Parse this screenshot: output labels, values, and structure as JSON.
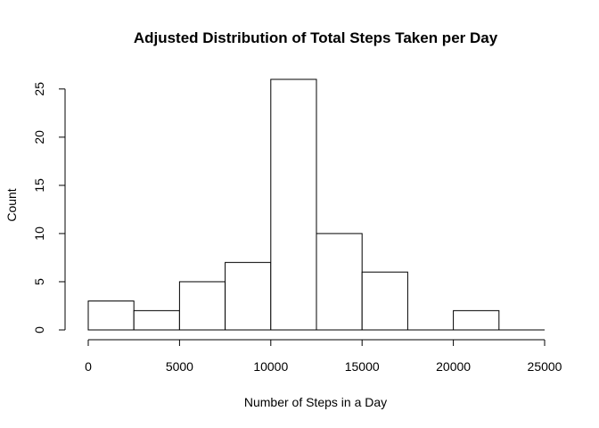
{
  "chart_data": {
    "type": "bar",
    "title": "Adjusted Distribution of Total Steps Taken per Day",
    "xlabel": "Number of Steps in a Day",
    "ylabel": "Count",
    "bins": [
      {
        "start": 0,
        "end": 2500,
        "count": 3
      },
      {
        "start": 2500,
        "end": 5000,
        "count": 2
      },
      {
        "start": 5000,
        "end": 7500,
        "count": 5
      },
      {
        "start": 7500,
        "end": 10000,
        "count": 7
      },
      {
        "start": 10000,
        "end": 12500,
        "count": 26
      },
      {
        "start": 12500,
        "end": 15000,
        "count": 10
      },
      {
        "start": 15000,
        "end": 17500,
        "count": 6
      },
      {
        "start": 17500,
        "end": 20000,
        "count": 0
      },
      {
        "start": 20000,
        "end": 22500,
        "count": 2
      },
      {
        "start": 22500,
        "end": 25000,
        "count": 0
      }
    ],
    "xlim": [
      0,
      25000
    ],
    "ylim": [
      0,
      26
    ],
    "x_ticks": [
      "0",
      "5000",
      "10000",
      "15000",
      "20000",
      "25000"
    ],
    "y_ticks": [
      "0",
      "5",
      "10",
      "15",
      "20",
      "25"
    ],
    "grid": false,
    "bar_fill": "#ffffff",
    "bar_stroke": "#000000"
  }
}
